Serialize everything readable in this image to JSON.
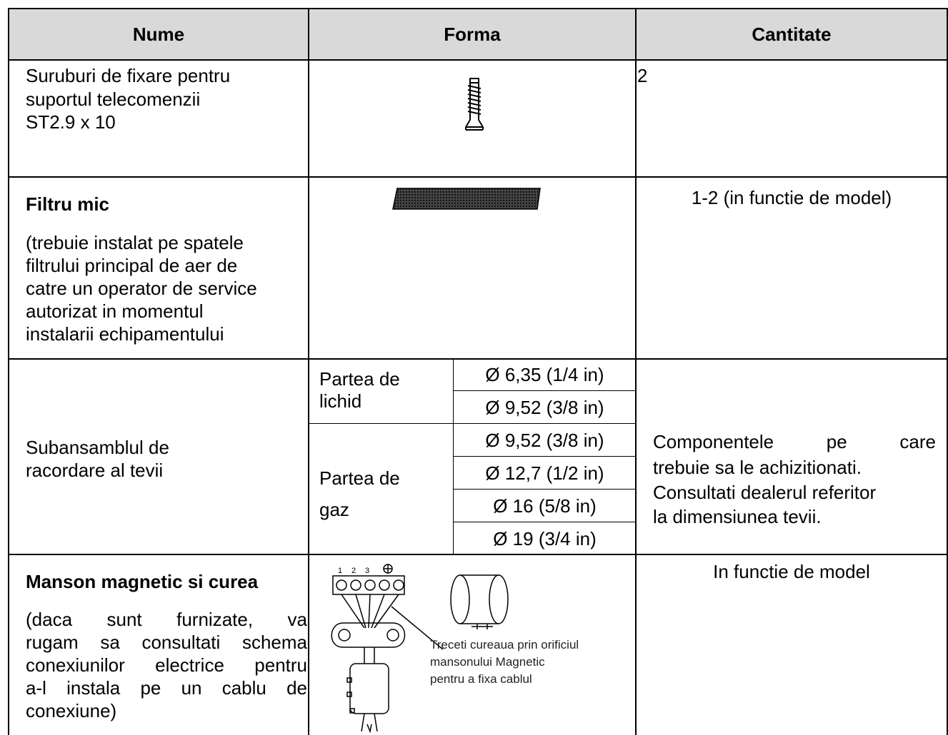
{
  "table": {
    "header": [
      "Nume",
      "Forma",
      "Cantitate"
    ],
    "rows": [
      {
        "name": [
          "Suruburi de fixare pentru",
          "suportul telecomenzii",
          "ST2.9 x 10"
        ],
        "quantity": "2"
      },
      {
        "name_title": "Filtru mic",
        "name": [
          "(trebuie instalat pe spatele",
          "filtrului principal de aer de",
          "catre un operator de service",
          "autorizat in momentul",
          "instalarii echipamentului"
        ],
        "quantity": "1-2 (in functie de model)"
      },
      {
        "name": [
          "Subansamblul de",
          "racordare al tevii"
        ],
        "groups": [
          {
            "label": [
              "Partea de",
              "lichid"
            ],
            "sizes": [
              "Ø 6,35 (1/4 in)",
              "Ø 9,52 (3/8 in)"
            ]
          },
          {
            "label": [
              "Partea de",
              "gaz"
            ],
            "sizes": [
              "Ø 9,52 (3/8 in)",
              "Ø 12,7 (1/2 in)",
              "Ø 16 (5/8 in)",
              "Ø 19 (3/4 in)"
            ]
          }
        ],
        "quantity": [
          "Componentele pe care",
          "trebuie sa le achizitionati.",
          "Consultati dealerul referitor",
          "la dimensiunea tevii."
        ]
      },
      {
        "name_title": "Manson magnetic si curea",
        "name": [
          "(daca sunt furnizate, va",
          "rugam sa consultati schema",
          "conexiunilor electrice pentru",
          "a-l instala pe un cablu de",
          "conexiune)"
        ],
        "diagram": {
          "terminals": [
            "1",
            "2",
            "3"
          ],
          "note": [
            "Treceti cureaua prin orificiul",
            "mansonului Magnetic",
            "pentru a fixa cablul"
          ]
        },
        "quantity": "In functie de model"
      }
    ]
  }
}
